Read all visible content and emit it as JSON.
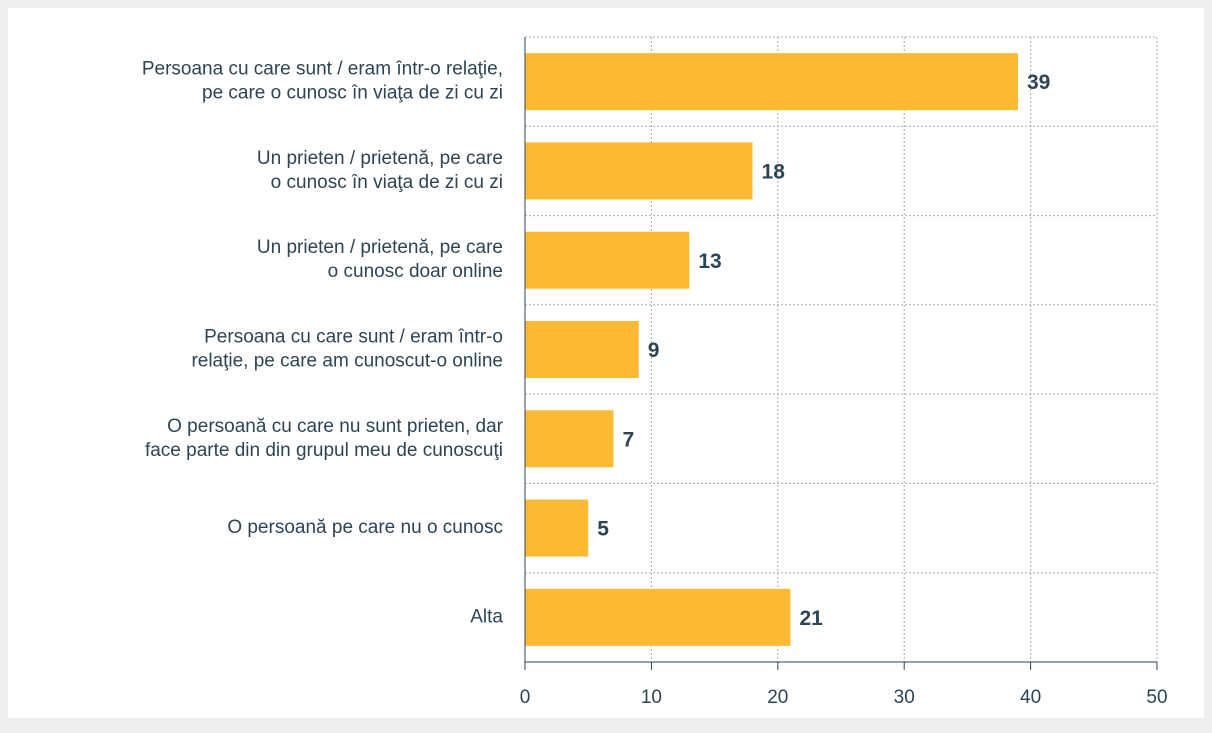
{
  "chart_data": {
    "type": "hbar",
    "categories": [
      [
        "Persoana cu care sunt / eram într-o relaţie,",
        "pe care o cunosc în viaţa de zi cu zi"
      ],
      [
        "Un prieten / prietenă, pe care",
        "o cunosc în viaţa de zi cu zi"
      ],
      [
        "Un prieten / prietenă, pe care",
        "o cunosc doar online"
      ],
      [
        "Persoana cu care sunt / eram într-o",
        "relaţie, pe care am cunoscut-o  online"
      ],
      [
        "O persoană cu care nu sunt prieten, dar",
        "face parte din din grupul meu de cunoscuţi"
      ],
      [
        "O persoană pe care nu o cunosc"
      ],
      [
        "Alta"
      ]
    ],
    "values": [
      39,
      18,
      13,
      9,
      7,
      5,
      21
    ],
    "color": "#fbb934",
    "xlim": [
      0,
      50
    ],
    "xticks": [
      0,
      10,
      20,
      30,
      40,
      50
    ],
    "grid": true
  }
}
